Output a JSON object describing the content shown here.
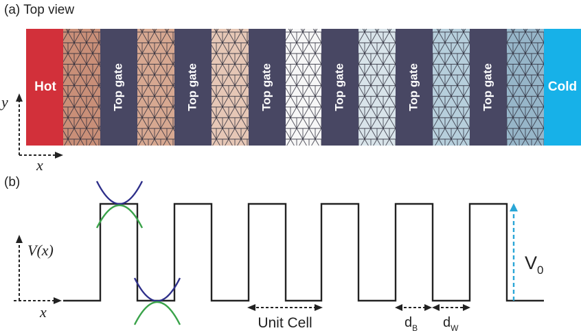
{
  "panel_a": {
    "label": "(a) Top view",
    "hot_label": "Hot",
    "cold_label": "Cold",
    "gate_label": "Top gate",
    "gate_count": 6,
    "axis_x": "x",
    "axis_y": "y",
    "colors": {
      "hot": "#d2303a",
      "cold": "#17b1e8",
      "gate": "#484763",
      "lattice_line": "#2a2a38",
      "wells": [
        "#c98f78",
        "#d7a891",
        "#e6c7b6",
        "#f7f7f7",
        "#d9e4ea",
        "#b7cfdc",
        "#97b6c9"
      ]
    }
  },
  "panel_b": {
    "label": "(b)",
    "axis_y": "V(x)",
    "axis_x": "x",
    "barrier_height_label": "V",
    "barrier_height_sub": "0",
    "unit_cell_label": "Unit Cell",
    "barrier_width_label": "d",
    "barrier_width_sub": "B",
    "well_width_label": "d",
    "well_width_sub": "W",
    "barrier_count": 6,
    "colors": {
      "profile": "#222222",
      "arrow": "#2aa6d6",
      "conduction_band": "#2e2f8a",
      "valence_band": "#3aa34a"
    }
  }
}
